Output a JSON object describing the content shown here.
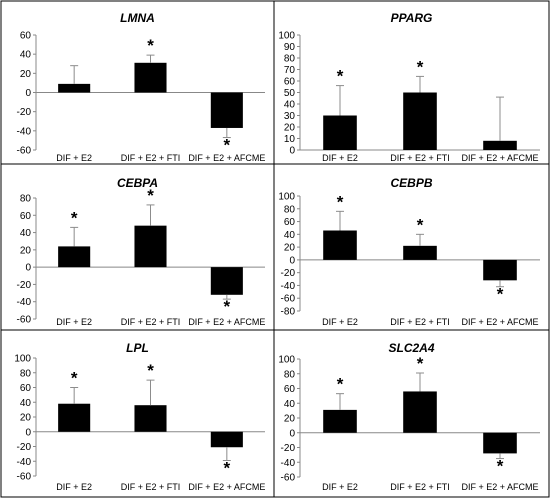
{
  "figure": {
    "border_color": "#000000",
    "bar_color": "#000000",
    "error_color": "#8c8c8c"
  },
  "chart_data": [
    {
      "type": "bar",
      "title": "LMNA",
      "categories": [
        "DIF + E2",
        "DIF + E2 + FTI",
        "DIF + E2 + AFCME"
      ],
      "values": [
        9,
        31,
        -37
      ],
      "errors": [
        19,
        8,
        10
      ],
      "significant": [
        false,
        true,
        true
      ],
      "marker": "*",
      "ylim": [
        -60,
        60
      ],
      "yticks": [
        -60,
        -40,
        -20,
        0,
        20,
        40,
        60
      ]
    },
    {
      "type": "bar",
      "title": "PPARG",
      "categories": [
        "DIF + E2",
        "DIF + E2 + FTI",
        "DIF + E2 + AFCME"
      ],
      "values": [
        30,
        50,
        8
      ],
      "errors": [
        26,
        14,
        38
      ],
      "significant": [
        true,
        true,
        false
      ],
      "marker": "*",
      "ylim": [
        0,
        100
      ],
      "yticks": [
        0,
        10,
        20,
        30,
        40,
        50,
        60,
        70,
        80,
        90,
        100
      ]
    },
    {
      "type": "bar",
      "title": "CEBPA",
      "categories": [
        "DIF + E2",
        "DIF + E2 + FTI",
        "DIF + E2 + AFCME"
      ],
      "values": [
        24,
        48,
        -32
      ],
      "errors": [
        22,
        24,
        5
      ],
      "significant": [
        true,
        true,
        true
      ],
      "marker": "*",
      "ylim": [
        -60,
        80
      ],
      "yticks": [
        -60,
        -40,
        -20,
        0,
        20,
        40,
        60,
        80
      ]
    },
    {
      "type": "bar",
      "title": "CEBPB",
      "categories": [
        "DIF + E2",
        "DIF + E2 + FTI",
        "DIF + E2 + AFCME"
      ],
      "values": [
        46,
        22,
        -32
      ],
      "errors": [
        30,
        18,
        10
      ],
      "significant": [
        true,
        true,
        true
      ],
      "marker": "*",
      "ylim": [
        -80,
        100
      ],
      "yticks": [
        -80,
        -60,
        -40,
        -20,
        0,
        20,
        40,
        60,
        80,
        100
      ]
    },
    {
      "type": "bar",
      "title": "LPL",
      "categories": [
        "DIF + E2",
        "DIF + E2 + FTI",
        "DIF + E2 + AFCME"
      ],
      "values": [
        38,
        36,
        -21
      ],
      "errors": [
        22,
        34,
        18
      ],
      "significant": [
        true,
        true,
        true
      ],
      "marker": "*",
      "ylim": [
        -60,
        100
      ],
      "yticks": [
        -60,
        -40,
        -20,
        0,
        20,
        40,
        60,
        80,
        100
      ]
    },
    {
      "type": "bar",
      "title": "SLC2A4",
      "categories": [
        "DIF + E2",
        "DIF + E2 + FTI",
        "DIF + E2 + AFCME"
      ],
      "values": [
        31,
        56,
        -28
      ],
      "errors": [
        22,
        25,
        7
      ],
      "significant": [
        true,
        true,
        true
      ],
      "marker": "*",
      "ylim": [
        -60,
        100
      ],
      "yticks": [
        -60,
        -40,
        -20,
        0,
        20,
        40,
        60,
        80,
        100
      ]
    }
  ]
}
